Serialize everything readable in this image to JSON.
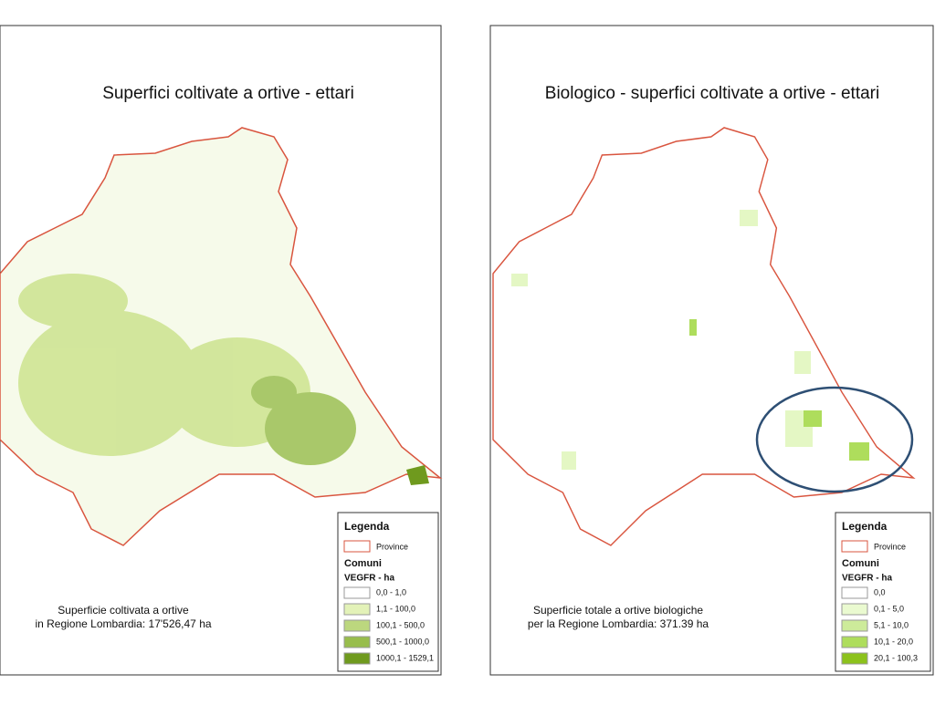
{
  "maps": [
    {
      "title": "Superfici coltivate a ortive - ettari",
      "caption": [
        "Superficie coltivata a ortive",
        "in Regione Lombardia: 17'526,47 ha"
      ],
      "legend": {
        "title": "Legenda",
        "province": "Province",
        "comuni": "Comuni",
        "field": "VEGFR - ha",
        "classes": [
          {
            "label": "0,0 - 1,0",
            "color": "#ffffff"
          },
          {
            "label": "1,1 - 100,0",
            "color": "#e3f2b8"
          },
          {
            "label": "100,1 - 500,0",
            "color": "#bcd77e"
          },
          {
            "label": "500,1 - 1000,0",
            "color": "#98bd4c"
          },
          {
            "label": "1000,1 - 1529,1",
            "color": "#6f9a1e"
          }
        ]
      }
    },
    {
      "title": "Biologico - superfici coltivate a ortive - ettari",
      "caption": [
        "Superficie totale a ortive biologiche",
        "per la Regione Lombardia: 371.39 ha"
      ],
      "legend": {
        "title": "Legenda",
        "province": "Province",
        "comuni": "Comuni",
        "field": "VEGFR - ha",
        "classes": [
          {
            "label": "0,0",
            "color": "#ffffff"
          },
          {
            "label": "0,1 - 5,0",
            "color": "#eafad0"
          },
          {
            "label": "5,1 - 10,0",
            "color": "#cdeb9a"
          },
          {
            "label": "10,1 - 20,0",
            "color": "#aedd5c"
          },
          {
            "label": "20,1 - 100,3",
            "color": "#8cc21c"
          }
        ]
      }
    }
  ]
}
